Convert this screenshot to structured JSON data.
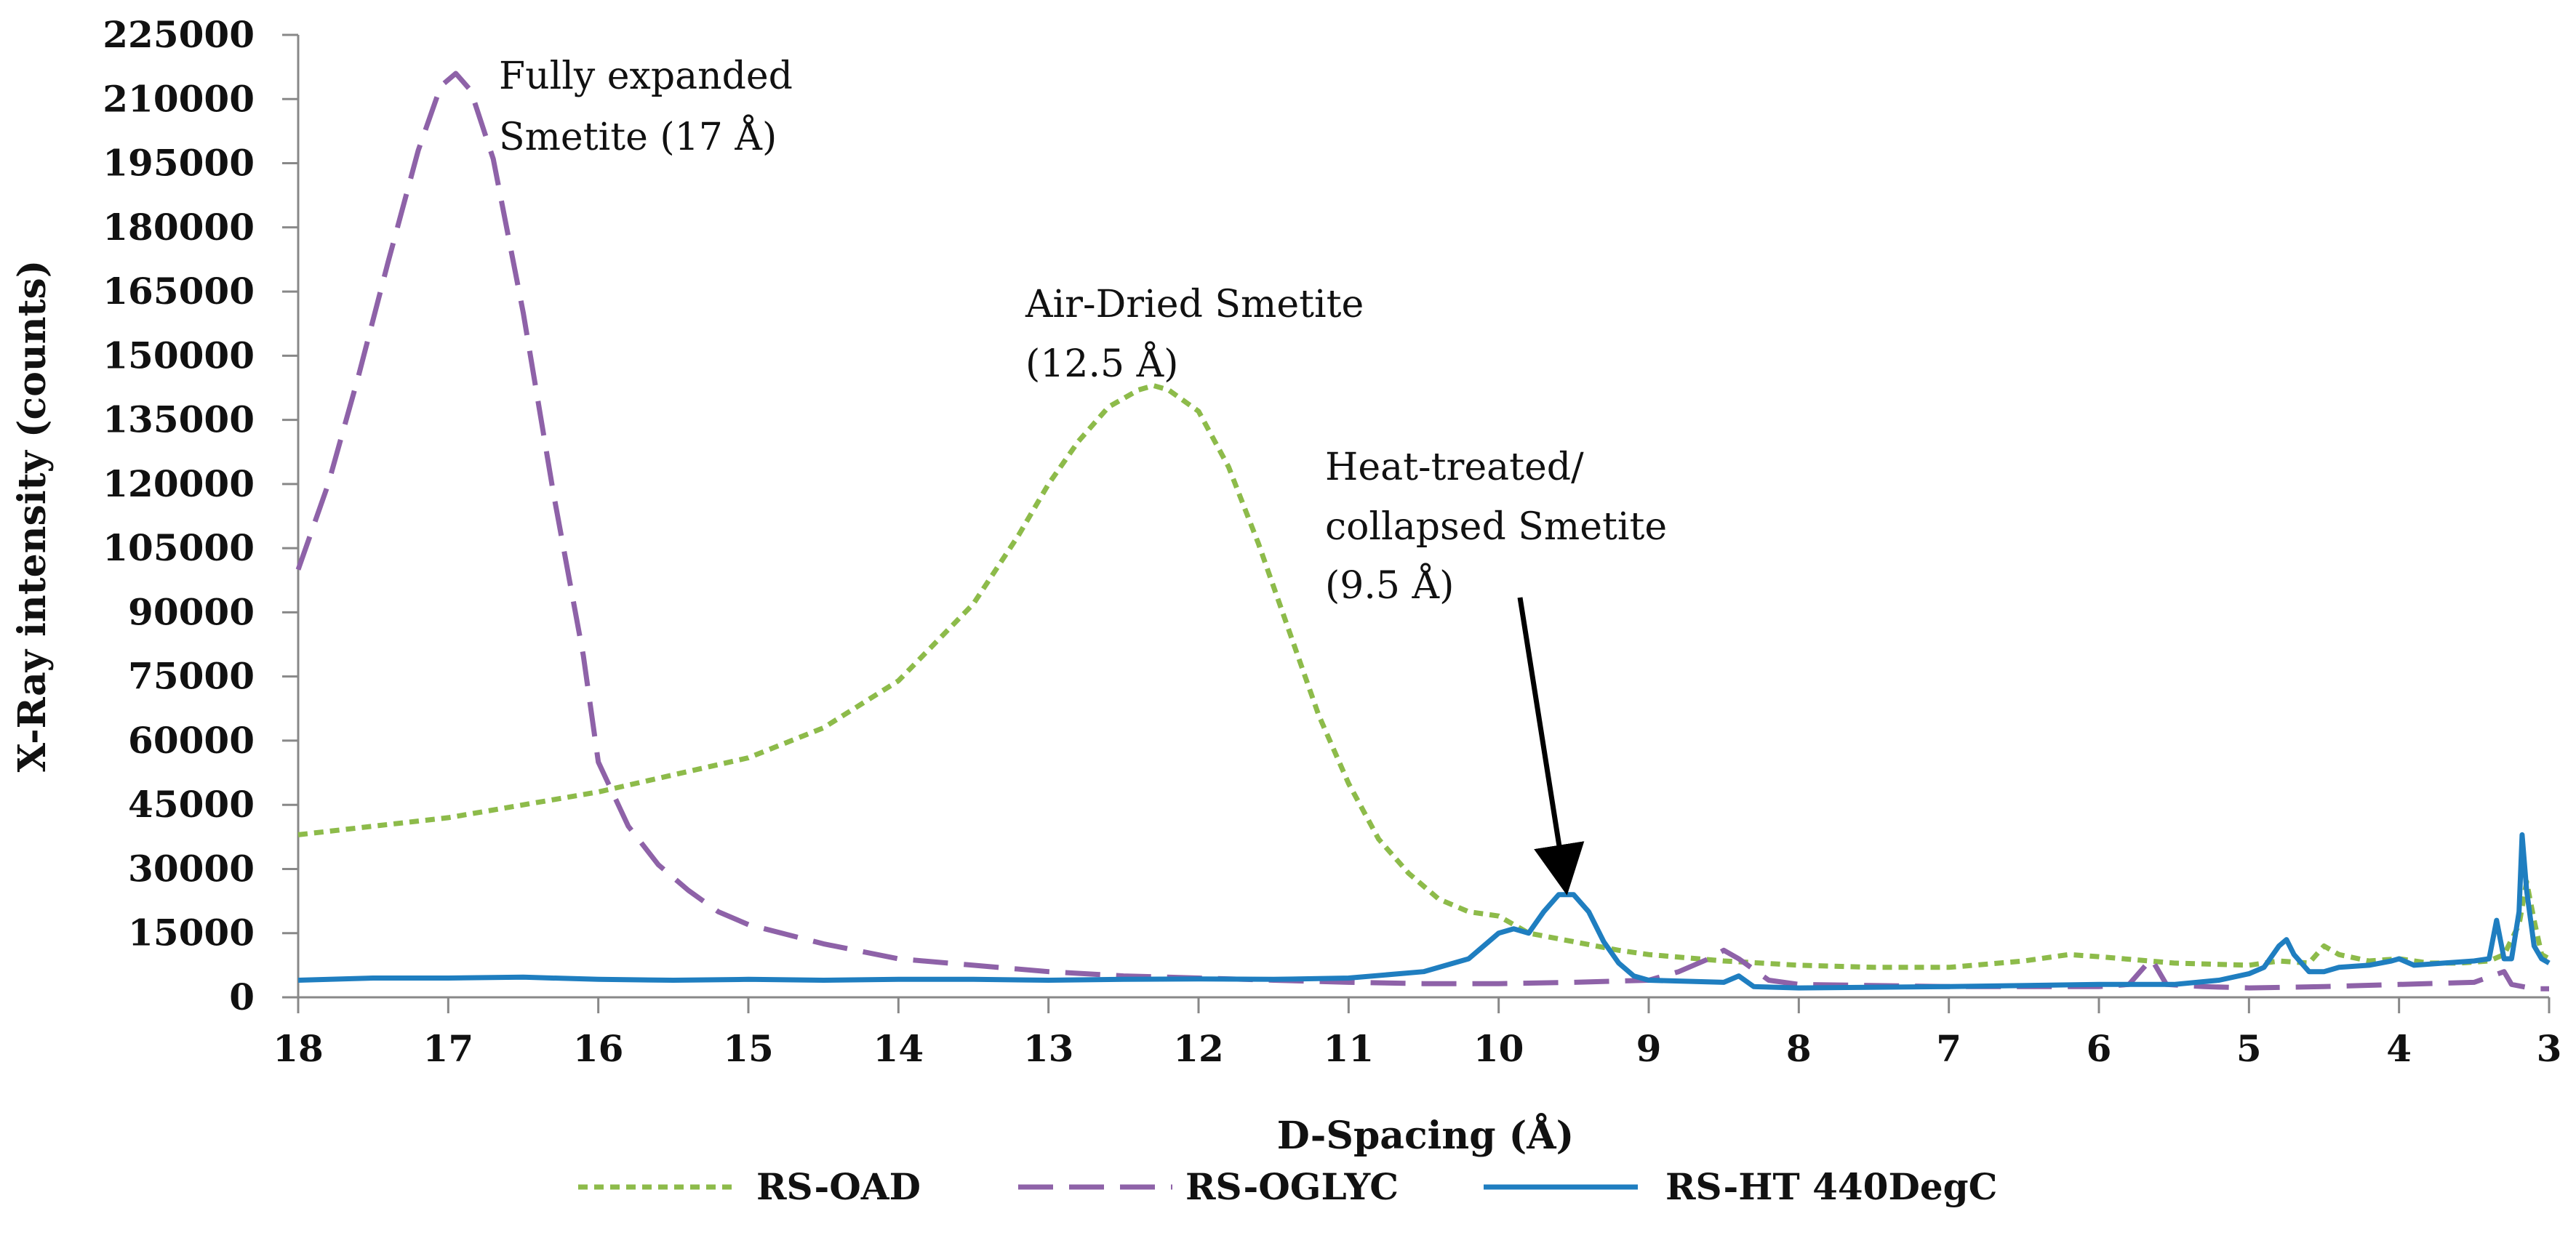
{
  "chart_data": {
    "type": "line",
    "title": "",
    "xlabel": "D-Spacing (Å)",
    "ylabel": "X-Ray intensity (counts)",
    "xlim": [
      18,
      3
    ],
    "ylim": [
      0,
      225000
    ],
    "x_reversed": true,
    "x_ticks": [
      18,
      17,
      16,
      15,
      14,
      13,
      12,
      11,
      10,
      9,
      8,
      7,
      6,
      5,
      4,
      3
    ],
    "y_ticks": [
      0,
      15000,
      30000,
      45000,
      60000,
      75000,
      90000,
      105000,
      120000,
      135000,
      150000,
      165000,
      180000,
      195000,
      210000,
      225000
    ],
    "grid": false,
    "legend_position": "bottom",
    "series": [
      {
        "name": "RS-OAD",
        "color": "#8dbb4a",
        "dash": "short-dash",
        "points": [
          [
            18,
            38000
          ],
          [
            17.5,
            40000
          ],
          [
            17,
            42000
          ],
          [
            16.5,
            45000
          ],
          [
            16,
            48000
          ],
          [
            15.5,
            52000
          ],
          [
            15,
            56000
          ],
          [
            14.5,
            63000
          ],
          [
            14,
            74000
          ],
          [
            13.5,
            92000
          ],
          [
            13.2,
            108000
          ],
          [
            13,
            120000
          ],
          [
            12.8,
            130000
          ],
          [
            12.6,
            138000
          ],
          [
            12.4,
            142000
          ],
          [
            12.3,
            143000
          ],
          [
            12.2,
            142000
          ],
          [
            12,
            137000
          ],
          [
            11.8,
            124000
          ],
          [
            11.6,
            106000
          ],
          [
            11.4,
            86000
          ],
          [
            11.2,
            66000
          ],
          [
            11,
            50000
          ],
          [
            10.8,
            37000
          ],
          [
            10.6,
            29000
          ],
          [
            10.4,
            23000
          ],
          [
            10.2,
            20000
          ],
          [
            10,
            19000
          ],
          [
            9.8,
            15000
          ],
          [
            9.5,
            13000
          ],
          [
            9.2,
            11000
          ],
          [
            9,
            10000
          ],
          [
            8.5,
            8500
          ],
          [
            8,
            7500
          ],
          [
            7.5,
            7000
          ],
          [
            7,
            7000
          ],
          [
            6.5,
            8500
          ],
          [
            6.2,
            10000
          ],
          [
            6,
            9500
          ],
          [
            5.5,
            8000
          ],
          [
            5,
            7500
          ],
          [
            4.8,
            8500
          ],
          [
            4.6,
            8000
          ],
          [
            4.5,
            12000
          ],
          [
            4.4,
            10000
          ],
          [
            4.2,
            8500
          ],
          [
            4.0,
            9000
          ],
          [
            3.8,
            8000
          ],
          [
            3.6,
            8000
          ],
          [
            3.4,
            8500
          ],
          [
            3.3,
            10000
          ],
          [
            3.2,
            17000
          ],
          [
            3.15,
            27000
          ],
          [
            3.1,
            18000
          ],
          [
            3.05,
            10000
          ],
          [
            3,
            9000
          ]
        ]
      },
      {
        "name": "RS-OGLYC",
        "color": "#8e62a8",
        "dash": "long-dash",
        "points": [
          [
            18,
            100000
          ],
          [
            17.8,
            120000
          ],
          [
            17.6,
            145000
          ],
          [
            17.4,
            172000
          ],
          [
            17.2,
            198000
          ],
          [
            17.05,
            213000
          ],
          [
            16.95,
            216000
          ],
          [
            16.85,
            212000
          ],
          [
            16.7,
            196000
          ],
          [
            16.5,
            160000
          ],
          [
            16.3,
            118000
          ],
          [
            16.1,
            80000
          ],
          [
            16,
            55000
          ],
          [
            15.8,
            40000
          ],
          [
            15.6,
            31000
          ],
          [
            15.4,
            25000
          ],
          [
            15.2,
            20000
          ],
          [
            15,
            17000
          ],
          [
            14.5,
            12500
          ],
          [
            14,
            9000
          ],
          [
            13.5,
            7500
          ],
          [
            13,
            6000
          ],
          [
            12.5,
            5000
          ],
          [
            12,
            4500
          ],
          [
            11.5,
            4000
          ],
          [
            11,
            3500
          ],
          [
            10.5,
            3200
          ],
          [
            10,
            3200
          ],
          [
            9.5,
            3500
          ],
          [
            9,
            4000
          ],
          [
            8.8,
            6000
          ],
          [
            8.6,
            9000
          ],
          [
            8.5,
            11000
          ],
          [
            8.4,
            9000
          ],
          [
            8.2,
            4000
          ],
          [
            8,
            3000
          ],
          [
            7,
            2500
          ],
          [
            6,
            2500
          ],
          [
            5.8,
            3000
          ],
          [
            5.65,
            9000
          ],
          [
            5.55,
            3000
          ],
          [
            5.3,
            2500
          ],
          [
            5,
            2200
          ],
          [
            4.5,
            2500
          ],
          [
            4,
            3000
          ],
          [
            3.5,
            3500
          ],
          [
            3.3,
            6000
          ],
          [
            3.25,
            3000
          ],
          [
            3.1,
            2000
          ],
          [
            3,
            2000
          ]
        ]
      },
      {
        "name": "RS-HT 440DegC",
        "color": "#1f7ec0",
        "dash": "solid",
        "points": [
          [
            18,
            4000
          ],
          [
            17.5,
            4500
          ],
          [
            17,
            4500
          ],
          [
            16.5,
            4700
          ],
          [
            16,
            4200
          ],
          [
            15.5,
            4000
          ],
          [
            15,
            4200
          ],
          [
            14.5,
            4000
          ],
          [
            14,
            4200
          ],
          [
            13.5,
            4200
          ],
          [
            13,
            4000
          ],
          [
            12.5,
            4200
          ],
          [
            12,
            4300
          ],
          [
            11.5,
            4200
          ],
          [
            11,
            4500
          ],
          [
            10.5,
            6000
          ],
          [
            10.2,
            9000
          ],
          [
            10,
            15000
          ],
          [
            9.9,
            16000
          ],
          [
            9.8,
            15000
          ],
          [
            9.7,
            20000
          ],
          [
            9.6,
            24000
          ],
          [
            9.5,
            24000
          ],
          [
            9.4,
            20000
          ],
          [
            9.3,
            13000
          ],
          [
            9.2,
            8000
          ],
          [
            9.1,
            5000
          ],
          [
            9,
            4000
          ],
          [
            8.5,
            3500
          ],
          [
            8.4,
            5000
          ],
          [
            8.3,
            2500
          ],
          [
            8,
            2200
          ],
          [
            7,
            2500
          ],
          [
            6,
            3000
          ],
          [
            5.5,
            3000
          ],
          [
            5.2,
            4000
          ],
          [
            5,
            5500
          ],
          [
            4.9,
            7000
          ],
          [
            4.8,
            12000
          ],
          [
            4.75,
            13500
          ],
          [
            4.7,
            10000
          ],
          [
            4.6,
            6000
          ],
          [
            4.5,
            6000
          ],
          [
            4.4,
            7000
          ],
          [
            4.2,
            7500
          ],
          [
            4.05,
            8500
          ],
          [
            4.0,
            9000
          ],
          [
            3.9,
            7500
          ],
          [
            3.7,
            8000
          ],
          [
            3.5,
            8500
          ],
          [
            3.4,
            9000
          ],
          [
            3.35,
            18000
          ],
          [
            3.3,
            9000
          ],
          [
            3.25,
            9000
          ],
          [
            3.2,
            20000
          ],
          [
            3.18,
            38000
          ],
          [
            3.15,
            25000
          ],
          [
            3.1,
            12000
          ],
          [
            3.05,
            9000
          ],
          [
            3,
            8000
          ]
        ]
      }
    ],
    "annotations": [
      {
        "lines": [
          "Fully expanded",
          "Smetite (17 Å)"
        ]
      },
      {
        "lines": [
          "Air-Dried Smetite",
          "(12.5 Å)"
        ]
      },
      {
        "lines": [
          "Heat-treated/",
          "collapsed Smetite",
          "(9.5 Å)"
        ],
        "arrow_to": [
          9.6,
          28000
        ]
      }
    ]
  }
}
